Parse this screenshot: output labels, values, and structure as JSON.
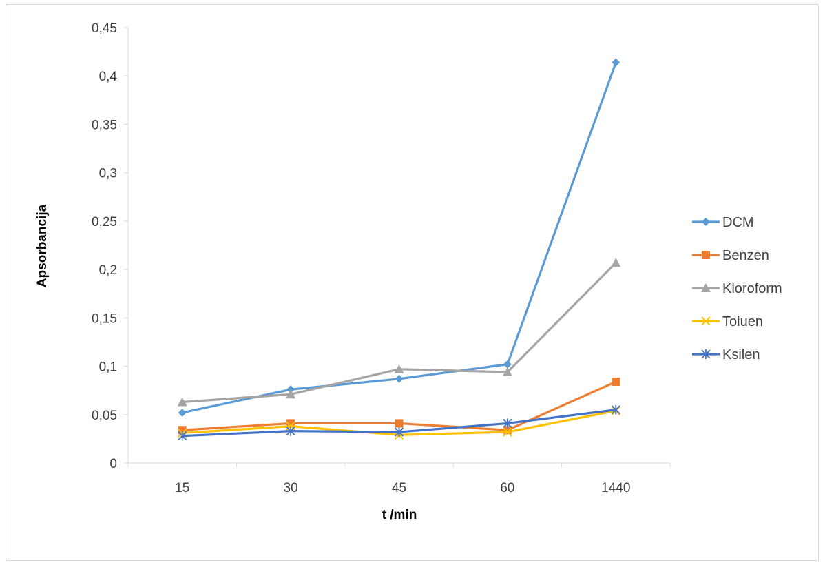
{
  "chart_data": {
    "type": "line",
    "title": "",
    "xlabel": "t /min",
    "ylabel": "Apsorbancija",
    "categories": [
      "15",
      "30",
      "45",
      "60",
      "1440"
    ],
    "ylim": [
      0,
      0.45
    ],
    "yticks": [
      0,
      0.05,
      0.1,
      0.15,
      0.2,
      0.25,
      0.3,
      0.35,
      0.4,
      0.45
    ],
    "ytick_labels": [
      "0",
      "0,05",
      "0,1",
      "0,15",
      "0,2",
      "0,25",
      "0,3",
      "0,35",
      "0,4",
      "0,45"
    ],
    "grid": false,
    "legend_position": "right",
    "series": [
      {
        "name": "DCM",
        "color": "#5B9BD5",
        "marker": "diamond",
        "values": [
          0.052,
          0.076,
          0.087,
          0.102,
          0.414
        ]
      },
      {
        "name": "Benzen",
        "color": "#ED7D31",
        "marker": "square",
        "values": [
          0.034,
          0.041,
          0.041,
          0.034,
          0.084
        ]
      },
      {
        "name": "Kloroform",
        "color": "#A5A5A5",
        "marker": "triangle",
        "values": [
          0.063,
          0.071,
          0.097,
          0.094,
          0.207
        ]
      },
      {
        "name": "Toluen",
        "color": "#FFC000",
        "marker": "x",
        "values": [
          0.031,
          0.038,
          0.029,
          0.032,
          0.054
        ]
      },
      {
        "name": "Ksilen",
        "color": "#4472C4",
        "marker": "star",
        "values": [
          0.028,
          0.033,
          0.032,
          0.041,
          0.055
        ]
      }
    ]
  }
}
